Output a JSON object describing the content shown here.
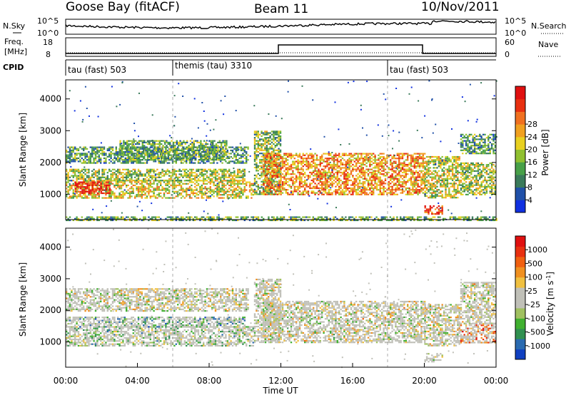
{
  "header": {
    "station": "Goose Bay (fitACF)",
    "beam": "Beam 11",
    "date": "10/Nov/2011"
  },
  "nsky_panel": {
    "left_label": "N.Sky",
    "left_ticks": [
      "10^5",
      "10^0"
    ],
    "right_label": "N.Search",
    "right_ticks": [
      "10^5",
      "10^0"
    ],
    "line_color": "#000000"
  },
  "freq_panel": {
    "left_label_1": "Freq.",
    "left_label_2": "[MHz]",
    "left_ticks": [
      "18",
      "8"
    ],
    "right_label": "Nave",
    "right_ticks": [
      "60",
      "0"
    ]
  },
  "cpid_panel": {
    "label": "CPID",
    "segments": [
      {
        "start_hour": 0,
        "name": "tau (fast) 503"
      },
      {
        "start_hour": 6,
        "name": "themis (tau) 3310"
      },
      {
        "start_hour": 18,
        "name": "tau (fast) 503"
      }
    ]
  },
  "chart_data": [
    {
      "type": "heatmap",
      "parameter": "power",
      "ylabel": "Slant Range [km]",
      "yticks": [
        "1000",
        "2000",
        "3000",
        "4000"
      ],
      "ylim": [
        200,
        4600
      ],
      "xlim_hours": [
        0,
        24
      ],
      "colorbar_label": "Power [dB]",
      "colorbar_ticks": [
        "4",
        "8",
        "12",
        "16",
        "20",
        "24",
        "28"
      ],
      "colorbar_colors": [
        "#1030e0",
        "#2050a8",
        "#3a7a5a",
        "#48a048",
        "#90c030",
        "#e8d020",
        "#f0a020",
        "#f07020",
        "#e83010",
        "#e01010"
      ],
      "bands": [
        {
          "t0": 0.0,
          "t1": 10.5,
          "r0": 900,
          "r1": 1450,
          "level": 0.55
        },
        {
          "t0": 0.5,
          "t1": 2.5,
          "r0": 1050,
          "r1": 1400,
          "level": 0.95
        },
        {
          "t0": 0.0,
          "t1": 10.0,
          "r0": 1450,
          "r1": 1800,
          "level": 0.45
        },
        {
          "t0": 0.0,
          "t1": 10.2,
          "r0": 2000,
          "r1": 2500,
          "level": 0.3
        },
        {
          "t0": 3.0,
          "t1": 9.0,
          "r0": 2100,
          "r1": 2700,
          "level": 0.35
        },
        {
          "t0": 10.5,
          "t1": 12.0,
          "r0": 1000,
          "r1": 3000,
          "level": 0.4
        },
        {
          "t0": 11.0,
          "t1": 20.0,
          "r0": 1000,
          "r1": 2300,
          "level": 0.7
        },
        {
          "t0": 20.0,
          "t1": 22.0,
          "r0": 900,
          "r1": 2200,
          "level": 0.5
        },
        {
          "t0": 20.0,
          "t1": 21.0,
          "r0": 400,
          "r1": 650,
          "level": 0.9
        },
        {
          "t0": 22.0,
          "t1": 24.0,
          "r0": 1000,
          "r1": 2000,
          "level": 0.45
        },
        {
          "t0": 22.0,
          "t1": 24.0,
          "r0": 2300,
          "r1": 2900,
          "level": 0.3
        },
        {
          "t0": 0.0,
          "t1": 24.0,
          "r0": 200,
          "r1": 300,
          "level": 0.35
        }
      ]
    },
    {
      "type": "heatmap",
      "parameter": "velocity",
      "ylabel": "Slant Range [km]",
      "yticks": [
        "1000",
        "2000",
        "3000",
        "4000"
      ],
      "ylim": [
        200,
        4600
      ],
      "xlim_hours": [
        0,
        24
      ],
      "xticks": [
        "00:00",
        "04:00",
        "08:00",
        "12:00",
        "16:00",
        "20:00",
        "00:00"
      ],
      "xlabel": "Time UT",
      "colorbar_label": "Velocity [m s",
      "colorbar_label_sup": "-1",
      "colorbar_label_end": "]",
      "colorbar_ticks": [
        "1000",
        "500",
        "100",
        "25",
        "-25",
        "-100",
        "-500",
        "-1000"
      ],
      "colorbar_colors": [
        "#1040c0",
        "#2a6ab0",
        "#309050",
        "#40b030",
        "#a0c060",
        "#c0c0b8",
        "#c0c0b8",
        "#f0c040",
        "#f09020",
        "#f06010",
        "#e83010",
        "#e01010"
      ],
      "bands": [
        {
          "t0": 0.0,
          "t1": 10.5,
          "r0": 900,
          "r1": 1500,
          "level": 0.4
        },
        {
          "t0": 0.0,
          "t1": 10.0,
          "r0": 1500,
          "r1": 1800,
          "level": 0.3
        },
        {
          "t0": 0.0,
          "t1": 10.2,
          "r0": 2000,
          "r1": 2700,
          "level": 0.5
        },
        {
          "t0": 10.5,
          "t1": 12.0,
          "r0": 1000,
          "r1": 3000,
          "level": 0.5
        },
        {
          "t0": 11.0,
          "t1": 20.0,
          "r0": 1000,
          "r1": 2300,
          "level": 0.5
        },
        {
          "t0": 20.0,
          "t1": 22.0,
          "r0": 900,
          "r1": 2200,
          "level": 0.5
        },
        {
          "t0": 20.0,
          "t1": 21.0,
          "r0": 400,
          "r1": 650,
          "level": 0.5
        },
        {
          "t0": 22.0,
          "t1": 24.0,
          "r0": 1000,
          "r1": 1600,
          "level": 0.8
        },
        {
          "t0": 22.0,
          "t1": 24.0,
          "r0": 1600,
          "r1": 2900,
          "level": 0.5
        }
      ]
    }
  ]
}
